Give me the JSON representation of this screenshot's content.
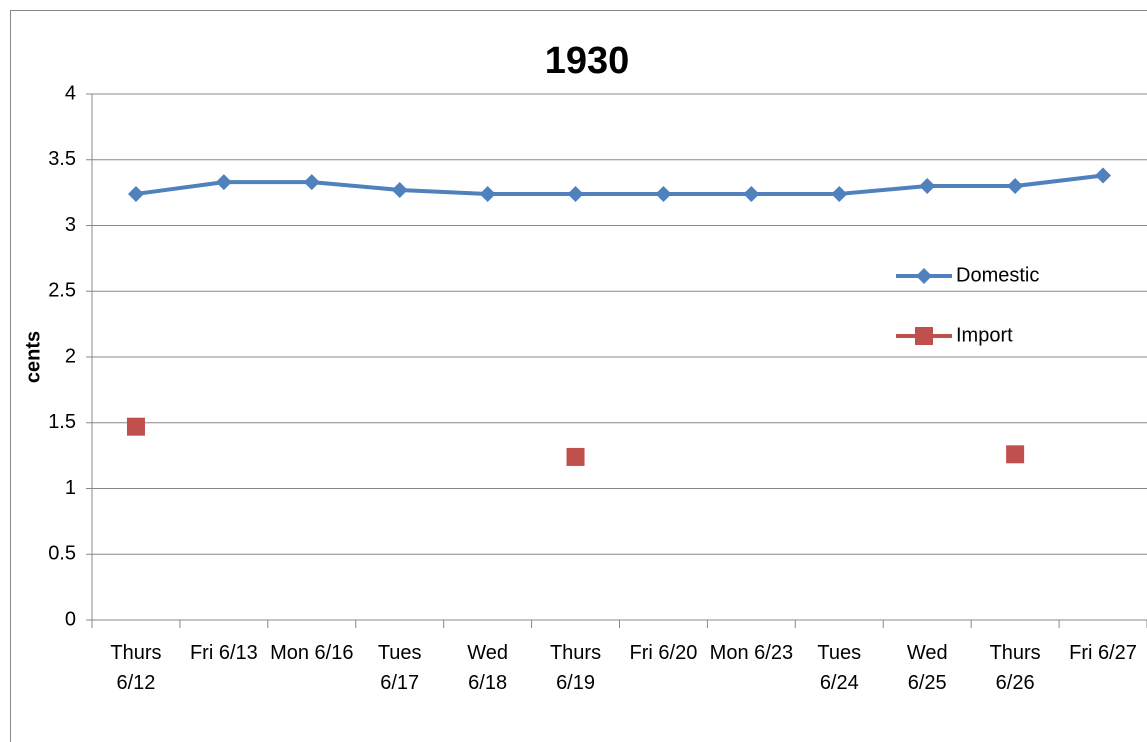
{
  "chart_data": {
    "type": "line",
    "title": "1930",
    "y_label": "cents",
    "categories": [
      "Thurs 6/12",
      "Fri 6/13",
      "Mon 6/16",
      "Tues 6/17",
      "Wed 6/18",
      "Thurs 6/19",
      "Fri 6/20",
      "Mon 6/23",
      "Tues 6/24",
      "Wed 6/25",
      "Thurs 6/26",
      "Fri 6/27"
    ],
    "series": [
      {
        "name": "Domestic",
        "color": "#4f81bd",
        "marker": "diamond",
        "values": [
          3.24,
          3.33,
          3.33,
          3.27,
          3.24,
          3.24,
          3.24,
          3.24,
          3.24,
          3.3,
          3.3,
          3.38
        ]
      },
      {
        "name": "Import",
        "color": "#c0504d",
        "marker": "square",
        "values": [
          1.47,
          null,
          null,
          null,
          null,
          1.24,
          null,
          null,
          null,
          null,
          1.26,
          null
        ]
      }
    ],
    "ylim": [
      0,
      4
    ],
    "yticks": [
      0,
      0.5,
      1,
      1.5,
      2,
      2.5,
      3,
      3.5,
      4
    ],
    "grid": true,
    "legend": "right"
  }
}
